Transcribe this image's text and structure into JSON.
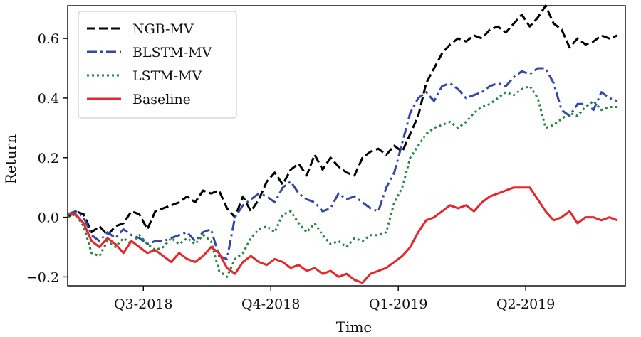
{
  "chart_data": {
    "type": "line",
    "title": "",
    "xlabel": "Time",
    "ylabel": "Return",
    "xlim": [
      0,
      280
    ],
    "ylim": [
      -0.23,
      0.71
    ],
    "x_ticks": [
      {
        "x": 38,
        "label": "Q3-2018"
      },
      {
        "x": 102,
        "label": "Q4-2018"
      },
      {
        "x": 166,
        "label": "Q1-2019"
      },
      {
        "x": 230,
        "label": "Q2-2019"
      }
    ],
    "y_ticks": [
      {
        "y": -0.2,
        "label": "−0.2"
      },
      {
        "y": 0.0,
        "label": "0.0"
      },
      {
        "y": 0.2,
        "label": "0.2"
      },
      {
        "y": 0.4,
        "label": "0.4"
      },
      {
        "y": 0.6,
        "label": "0.6"
      }
    ],
    "grid": false,
    "legend_position": "top-left",
    "series": [
      {
        "name": "NGB-MV",
        "color": "#000000",
        "style": "dashed",
        "x": [
          0,
          4,
          8,
          12,
          16,
          20,
          24,
          28,
          32,
          36,
          40,
          44,
          48,
          52,
          56,
          60,
          64,
          68,
          72,
          76,
          80,
          84,
          88,
          92,
          96,
          100,
          104,
          108,
          112,
          116,
          120,
          124,
          128,
          132,
          136,
          140,
          144,
          148,
          152,
          156,
          160,
          164,
          168,
          172,
          176,
          180,
          184,
          188,
          192,
          196,
          200,
          204,
          208,
          212,
          216,
          220,
          224,
          228,
          232,
          236,
          240,
          244,
          248,
          252,
          256,
          260,
          264,
          268,
          272,
          276
        ],
        "values": [
          0.0,
          0.02,
          0.01,
          -0.05,
          -0.03,
          -0.06,
          -0.03,
          -0.02,
          0.02,
          0.01,
          -0.04,
          0.02,
          0.03,
          0.04,
          0.05,
          0.07,
          0.05,
          0.09,
          0.08,
          0.09,
          0.03,
          0.0,
          0.07,
          0.02,
          0.06,
          0.12,
          0.15,
          0.11,
          0.16,
          0.18,
          0.14,
          0.21,
          0.16,
          0.2,
          0.17,
          0.15,
          0.14,
          0.2,
          0.22,
          0.23,
          0.21,
          0.24,
          0.22,
          0.28,
          0.34,
          0.45,
          0.5,
          0.55,
          0.58,
          0.6,
          0.59,
          0.61,
          0.6,
          0.63,
          0.64,
          0.62,
          0.65,
          0.68,
          0.64,
          0.67,
          0.71,
          0.65,
          0.63,
          0.57,
          0.6,
          0.58,
          0.59,
          0.61,
          0.6,
          0.61
        ]
      },
      {
        "name": "BLSTM-MV",
        "color": "#3547a8",
        "style": "dashdot",
        "x": [
          0,
          4,
          8,
          12,
          16,
          20,
          24,
          28,
          32,
          36,
          40,
          44,
          48,
          52,
          56,
          60,
          64,
          68,
          72,
          76,
          80,
          84,
          88,
          92,
          96,
          100,
          104,
          108,
          112,
          116,
          120,
          124,
          128,
          132,
          136,
          140,
          144,
          148,
          152,
          156,
          160,
          164,
          168,
          172,
          176,
          180,
          184,
          188,
          192,
          196,
          200,
          204,
          208,
          212,
          216,
          220,
          224,
          228,
          232,
          236,
          240,
          244,
          248,
          252,
          256,
          260,
          264,
          268,
          272,
          276
        ],
        "values": [
          0.01,
          0.02,
          0.0,
          -0.06,
          -0.08,
          -0.05,
          -0.07,
          -0.04,
          -0.06,
          -0.07,
          -0.09,
          -0.08,
          -0.08,
          -0.07,
          -0.06,
          -0.05,
          -0.08,
          -0.05,
          -0.04,
          -0.13,
          -0.14,
          0.0,
          0.04,
          0.06,
          0.08,
          0.07,
          0.05,
          0.1,
          0.12,
          0.08,
          0.06,
          0.05,
          0.02,
          0.03,
          0.08,
          0.06,
          0.07,
          0.05,
          0.03,
          0.02,
          0.1,
          0.15,
          0.25,
          0.35,
          0.4,
          0.42,
          0.39,
          0.44,
          0.45,
          0.43,
          0.4,
          0.41,
          0.42,
          0.44,
          0.45,
          0.44,
          0.47,
          0.49,
          0.48,
          0.5,
          0.5,
          0.45,
          0.36,
          0.34,
          0.38,
          0.38,
          0.36,
          0.42,
          0.4,
          0.39
        ]
      },
      {
        "name": "LSTM-MV",
        "color": "#1f8a3a",
        "style": "dotted",
        "x": [
          0,
          4,
          8,
          12,
          16,
          20,
          24,
          28,
          32,
          36,
          40,
          44,
          48,
          52,
          56,
          60,
          64,
          68,
          72,
          76,
          80,
          84,
          88,
          92,
          96,
          100,
          104,
          108,
          112,
          116,
          120,
          124,
          128,
          132,
          136,
          140,
          144,
          148,
          152,
          156,
          160,
          164,
          168,
          172,
          176,
          180,
          184,
          188,
          192,
          196,
          200,
          204,
          208,
          212,
          216,
          220,
          224,
          228,
          232,
          236,
          240,
          244,
          248,
          252,
          256,
          260,
          264,
          268,
          272,
          276
        ],
        "values": [
          0.0,
          0.01,
          -0.03,
          -0.12,
          -0.13,
          -0.08,
          -0.1,
          -0.07,
          -0.09,
          -0.06,
          -0.09,
          -0.11,
          -0.1,
          -0.07,
          -0.09,
          -0.07,
          -0.09,
          -0.06,
          -0.08,
          -0.18,
          -0.2,
          -0.14,
          -0.12,
          -0.07,
          -0.04,
          -0.03,
          -0.05,
          0.01,
          0.02,
          -0.02,
          -0.05,
          -0.02,
          -0.06,
          -0.09,
          -0.08,
          -0.1,
          -0.07,
          -0.08,
          -0.06,
          -0.06,
          -0.05,
          0.05,
          0.1,
          0.2,
          0.24,
          0.28,
          0.3,
          0.31,
          0.32,
          0.3,
          0.32,
          0.35,
          0.37,
          0.38,
          0.4,
          0.42,
          0.41,
          0.43,
          0.44,
          0.4,
          0.3,
          0.31,
          0.33,
          0.35,
          0.34,
          0.37,
          0.39,
          0.36,
          0.37,
          0.37
        ]
      },
      {
        "name": "Baseline",
        "color": "#e8262a",
        "style": "solid",
        "x": [
          0,
          4,
          8,
          12,
          16,
          20,
          24,
          28,
          32,
          36,
          40,
          44,
          48,
          52,
          56,
          60,
          64,
          68,
          72,
          76,
          80,
          84,
          88,
          92,
          96,
          100,
          104,
          108,
          112,
          116,
          120,
          124,
          128,
          132,
          136,
          140,
          144,
          148,
          152,
          156,
          160,
          164,
          168,
          172,
          176,
          180,
          184,
          188,
          192,
          196,
          200,
          204,
          208,
          212,
          216,
          220,
          224,
          228,
          232,
          236,
          240,
          244,
          248,
          252,
          256,
          260,
          264,
          268,
          272,
          276
        ],
        "values": [
          0.01,
          0.01,
          -0.02,
          -0.08,
          -0.1,
          -0.07,
          -0.09,
          -0.12,
          -0.08,
          -0.1,
          -0.12,
          -0.11,
          -0.13,
          -0.15,
          -0.12,
          -0.14,
          -0.15,
          -0.13,
          -0.1,
          -0.12,
          -0.17,
          -0.19,
          -0.15,
          -0.13,
          -0.15,
          -0.16,
          -0.14,
          -0.15,
          -0.17,
          -0.16,
          -0.18,
          -0.17,
          -0.19,
          -0.18,
          -0.2,
          -0.19,
          -0.21,
          -0.22,
          -0.19,
          -0.18,
          -0.17,
          -0.15,
          -0.13,
          -0.1,
          -0.05,
          -0.01,
          0.0,
          0.02,
          0.04,
          0.03,
          0.04,
          0.02,
          0.05,
          0.07,
          0.08,
          0.09,
          0.1,
          0.1,
          0.1,
          0.06,
          0.02,
          -0.01,
          0.0,
          0.02,
          -0.02,
          0.0,
          0.0,
          -0.01,
          0.0,
          -0.01
        ]
      }
    ]
  }
}
